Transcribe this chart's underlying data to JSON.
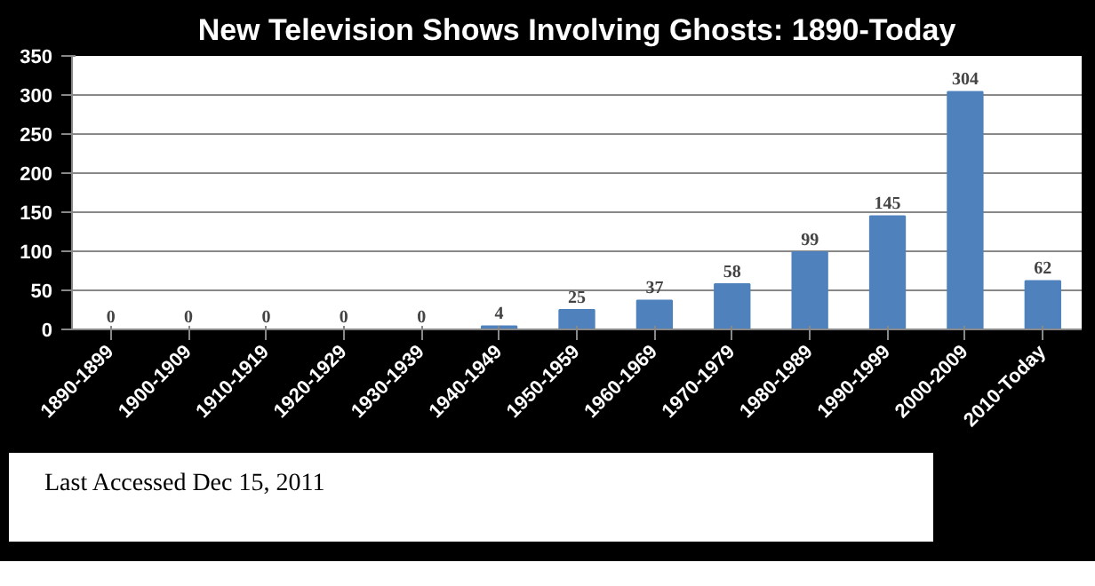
{
  "chart_data": {
    "type": "bar",
    "title": "New Television Shows Involving Ghosts: 1890-Today",
    "categories": [
      "1890-1899",
      "1900-1909",
      "1910-1919",
      "1920-1929",
      "1930-1939",
      "1940-1949",
      "1950-1959",
      "1960-1969",
      "1970-1979",
      "1980-1989",
      "1990-1999",
      "2000-2009",
      "2010-Today"
    ],
    "values": [
      0,
      0,
      0,
      0,
      0,
      4,
      25,
      37,
      58,
      99,
      145,
      304,
      62
    ],
    "color": "#4f81bd",
    "ylim": [
      0,
      350
    ],
    "yticks": [
      0,
      50,
      100,
      150,
      200,
      250,
      300,
      350
    ],
    "grid": "y",
    "data_labels": true,
    "annotations": [
      "Last Accessed Dec 15, 2011"
    ]
  }
}
